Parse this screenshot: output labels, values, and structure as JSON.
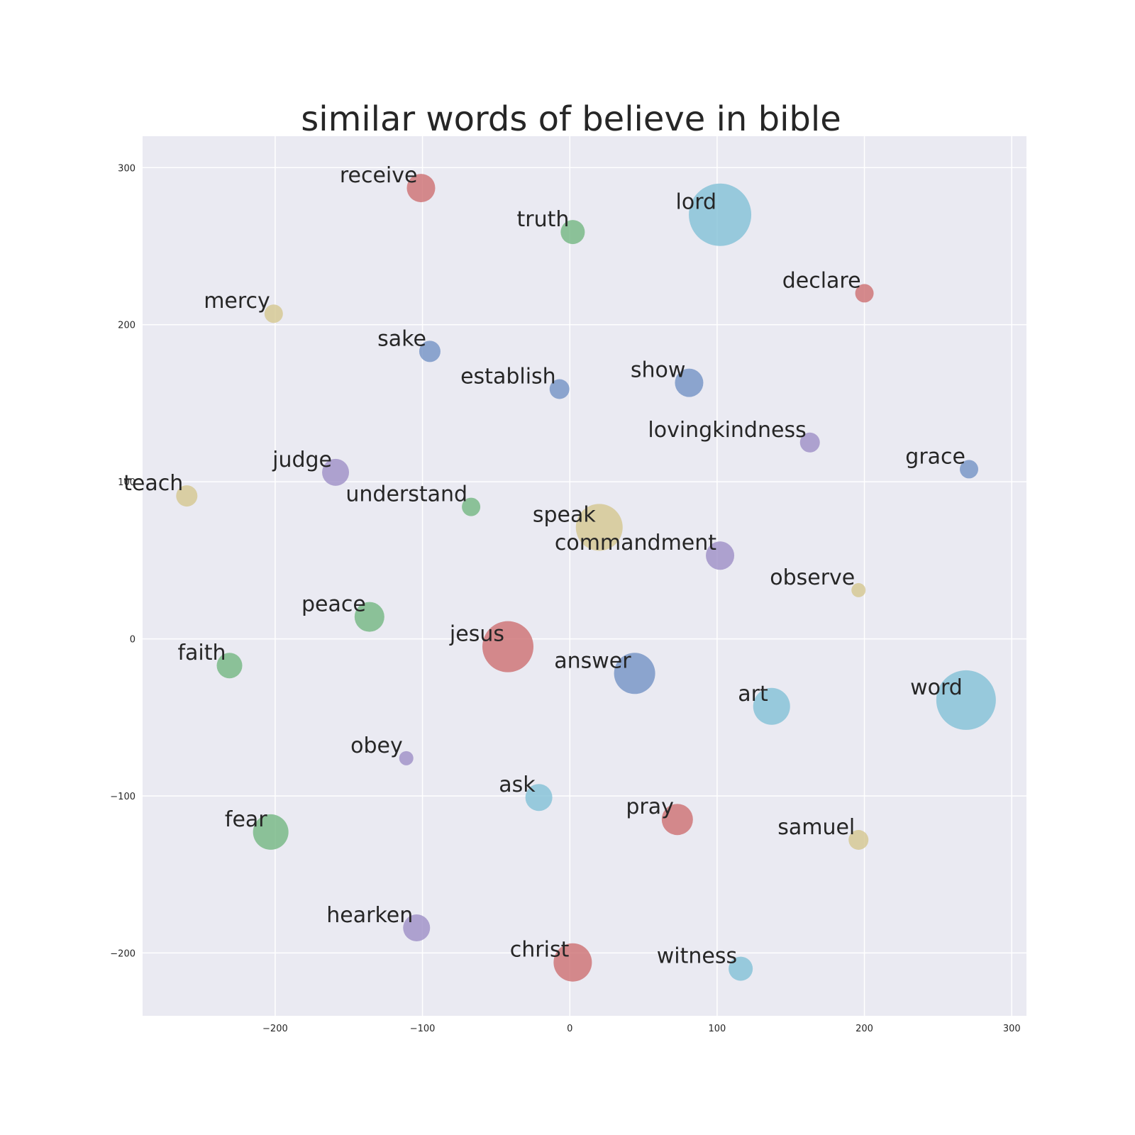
{
  "chart_data": {
    "type": "scatter",
    "title": "similar words of believe in bible",
    "xlabel": "",
    "ylabel": "",
    "xlim": [
      -290,
      310
    ],
    "ylim": [
      -240,
      320
    ],
    "xticks": [
      -200,
      -100,
      0,
      100,
      200,
      300
    ],
    "yticks": [
      -200,
      -100,
      0,
      100,
      200,
      300
    ],
    "grid": true,
    "colors": {
      "blue": "#6f8fc4",
      "green": "#6fb57f",
      "red": "#cc6b6e",
      "purple": "#9b8cc5",
      "yellow": "#d3c58d",
      "cyan": "#7fbfd6",
      "background": "#eaeaf2"
    },
    "points": [
      {
        "label": "receive",
        "x": -101,
        "y": 287,
        "size": 20,
        "color": "red"
      },
      {
        "label": "truth",
        "x": 2,
        "y": 259,
        "size": 17,
        "color": "green"
      },
      {
        "label": "lord",
        "x": 102,
        "y": 270,
        "size": 44,
        "color": "cyan"
      },
      {
        "label": "declare",
        "x": 200,
        "y": 220,
        "size": 13,
        "color": "red"
      },
      {
        "label": "mercy",
        "x": -201,
        "y": 207,
        "size": 13,
        "color": "yellow"
      },
      {
        "label": "sake",
        "x": -95,
        "y": 183,
        "size": 15,
        "color": "blue"
      },
      {
        "label": "establish",
        "x": -7,
        "y": 159,
        "size": 14,
        "color": "blue"
      },
      {
        "label": "show",
        "x": 81,
        "y": 163,
        "size": 20,
        "color": "blue"
      },
      {
        "label": "lovingkindness",
        "x": 163,
        "y": 125,
        "size": 14,
        "color": "purple"
      },
      {
        "label": "grace",
        "x": 271,
        "y": 108,
        "size": 13,
        "color": "blue"
      },
      {
        "label": "judge",
        "x": -159,
        "y": 106,
        "size": 19,
        "color": "purple"
      },
      {
        "label": "teach",
        "x": -260,
        "y": 91,
        "size": 15,
        "color": "yellow"
      },
      {
        "label": "understand",
        "x": -67,
        "y": 84,
        "size": 13,
        "color": "green"
      },
      {
        "label": "speak",
        "x": 20,
        "y": 71,
        "size": 33,
        "color": "yellow"
      },
      {
        "label": "commandment",
        "x": 102,
        "y": 53,
        "size": 20,
        "color": "purple"
      },
      {
        "label": "observe",
        "x": 196,
        "y": 31,
        "size": 10,
        "color": "yellow"
      },
      {
        "label": "peace",
        "x": -136,
        "y": 14,
        "size": 21,
        "color": "green"
      },
      {
        "label": "jesus",
        "x": -42,
        "y": -5,
        "size": 36,
        "color": "red"
      },
      {
        "label": "faith",
        "x": -231,
        "y": -17,
        "size": 18,
        "color": "green"
      },
      {
        "label": "answer",
        "x": 44,
        "y": -22,
        "size": 29,
        "color": "blue"
      },
      {
        "label": "art",
        "x": 137,
        "y": -43,
        "size": 26,
        "color": "cyan"
      },
      {
        "label": "word",
        "x": 269,
        "y": -39,
        "size": 42,
        "color": "cyan"
      },
      {
        "label": "obey",
        "x": -111,
        "y": -76,
        "size": 10,
        "color": "purple"
      },
      {
        "label": "ask",
        "x": -21,
        "y": -101,
        "size": 19,
        "color": "cyan"
      },
      {
        "label": "pray",
        "x": 73,
        "y": -115,
        "size": 22,
        "color": "red"
      },
      {
        "label": "samuel",
        "x": 196,
        "y": -128,
        "size": 14,
        "color": "yellow"
      },
      {
        "label": "fear",
        "x": -203,
        "y": -123,
        "size": 25,
        "color": "green"
      },
      {
        "label": "hearken",
        "x": -104,
        "y": -184,
        "size": 19,
        "color": "purple"
      },
      {
        "label": "christ",
        "x": 2,
        "y": -206,
        "size": 27,
        "color": "red"
      },
      {
        "label": "witness",
        "x": 116,
        "y": -210,
        "size": 17,
        "color": "cyan"
      }
    ]
  }
}
